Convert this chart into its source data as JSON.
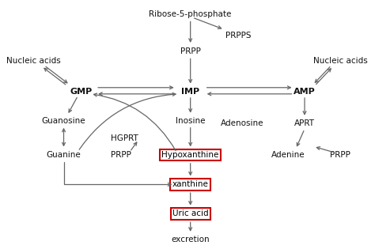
{
  "figsize": [
    4.74,
    3.15
  ],
  "dpi": 100,
  "bg_color": "#ffffff",
  "nodes": {
    "Ribose5P": [
      0.5,
      0.95,
      "Ribose-5-phosphate"
    ],
    "PRPPS": [
      0.635,
      0.865,
      "PRPPS"
    ],
    "PRPP": [
      0.5,
      0.8,
      "PRPP"
    ],
    "IMP": [
      0.5,
      0.635,
      "IMP"
    ],
    "GMP": [
      0.195,
      0.635,
      "GMP"
    ],
    "AMP": [
      0.82,
      0.635,
      "AMP"
    ],
    "NucleicL": [
      0.06,
      0.76,
      "Nucleic acids"
    ],
    "NucleicR": [
      0.92,
      0.76,
      "Nucleic acids"
    ],
    "Guanosine": [
      0.145,
      0.515,
      "Guanosine"
    ],
    "Guanine": [
      0.145,
      0.375,
      "Guanine"
    ],
    "HGPRT": [
      0.315,
      0.445,
      "HGPRT"
    ],
    "PRPP2": [
      0.305,
      0.375,
      "PRPP"
    ],
    "Inosine": [
      0.5,
      0.515,
      "Inosine"
    ],
    "Adenosine": [
      0.645,
      0.505,
      "Adenosine"
    ],
    "APRT": [
      0.82,
      0.505,
      "APRT"
    ],
    "Adenine": [
      0.775,
      0.375,
      "Adenine"
    ],
    "PRPP3": [
      0.92,
      0.375,
      "PRPP"
    ],
    "Hypoxanthine": [
      0.5,
      0.375,
      "Hypoxanthine"
    ],
    "xanthine": [
      0.5,
      0.255,
      "xanthine"
    ],
    "UricAcid": [
      0.5,
      0.135,
      "Uric acid"
    ],
    "excretion": [
      0.5,
      0.03,
      "excretion"
    ]
  },
  "boxed": [
    "Hypoxanthine",
    "xanthine",
    "UricAcid"
  ],
  "bold_nodes": [
    "GMP",
    "IMP",
    "AMP"
  ],
  "box_color": "#cc0000",
  "arrow_color": "#666666",
  "text_color": "#111111",
  "font_size": 7.5
}
